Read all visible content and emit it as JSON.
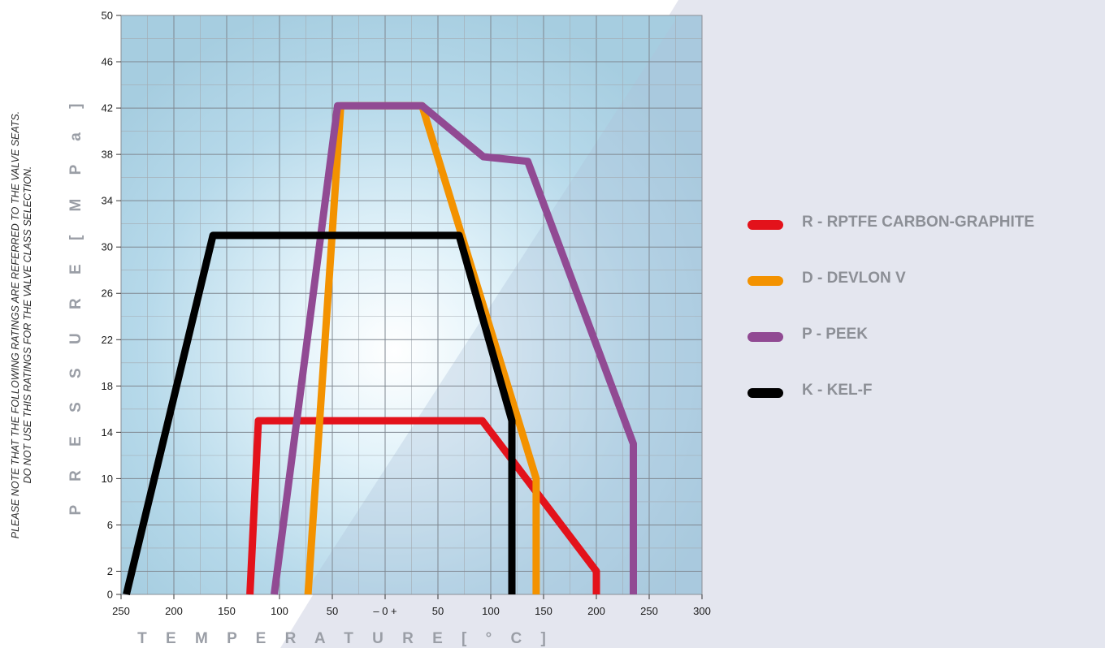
{
  "note": {
    "line1": "PLEASE NOTE THAT THE FOLLOWING RATINGS ARE REFERRED TO THE VALVE SEATS.",
    "line2": "DO NOT USE THIS RATINGS FOR THE VALVE CLASS SELECTION."
  },
  "chart_data": {
    "type": "line",
    "ylabel": "P R E S S U R E   [ M P a ]",
    "xlabel": "T E M P E R A T U R E [ ° C ]",
    "xlim": [
      -250,
      300
    ],
    "ylim": [
      0,
      50
    ],
    "x_ticks": [
      -250,
      -200,
      -150,
      -100,
      -50,
      0,
      50,
      100,
      150,
      200,
      250,
      300
    ],
    "x_tick_labels": [
      "250",
      "200",
      "150",
      "100",
      "50",
      "– 0 +",
      "50",
      "100",
      "150",
      "200",
      "250",
      "300"
    ],
    "y_ticks": [
      0,
      2,
      6,
      10,
      14,
      18,
      22,
      26,
      30,
      34,
      38,
      42,
      46,
      50
    ],
    "y_tick_labels": [
      "0",
      "2",
      "6",
      "10",
      "14",
      "18",
      "22",
      "26",
      "30",
      "34",
      "38",
      "42",
      "46",
      "50"
    ],
    "grid": true,
    "legend_position": "right",
    "series": [
      {
        "name": "R - RPTFE CARBON-GRAPHITE",
        "color": "#e3121b",
        "points": [
          [
            -128,
            0
          ],
          [
            -120,
            15
          ],
          [
            92,
            15
          ],
          [
            200,
            2
          ],
          [
            200,
            0
          ]
        ]
      },
      {
        "name": "D - DEVLON V",
        "color": "#f39200",
        "points": [
          [
            -73,
            0
          ],
          [
            -42,
            42.2
          ],
          [
            35,
            42.2
          ],
          [
            143,
            10
          ],
          [
            143,
            0
          ]
        ]
      },
      {
        "name": "P - PEEK",
        "color": "#914a93",
        "points": [
          [
            -105,
            0
          ],
          [
            -45,
            42.2
          ],
          [
            35,
            42.2
          ],
          [
            93,
            37.8
          ],
          [
            135,
            37.4
          ],
          [
            235,
            13
          ],
          [
            235,
            0
          ]
        ]
      },
      {
        "name": "K - KEL-F",
        "color": "#000000",
        "points": [
          [
            -245,
            0
          ],
          [
            -163,
            31
          ],
          [
            70,
            31
          ],
          [
            120,
            15
          ],
          [
            120,
            0
          ]
        ]
      }
    ]
  }
}
